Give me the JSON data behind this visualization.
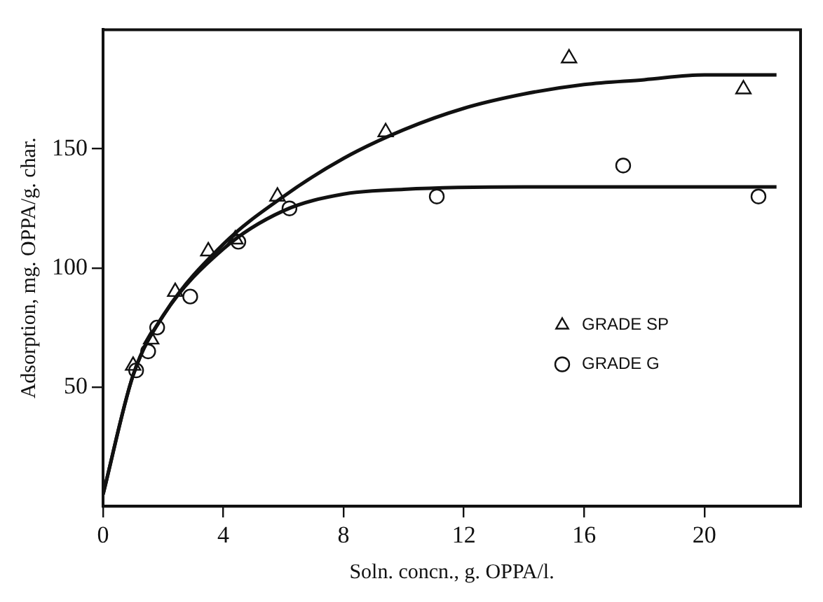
{
  "chart_data": {
    "type": "scatter",
    "xlabel": "Soln. concn., g. OPPA/l.",
    "ylabel": "Adsorption, mg. OPPA/g. char.",
    "xlim": [
      0,
      23.2
    ],
    "ylim": [
      0,
      200
    ],
    "xticks": [
      0,
      4,
      8,
      12,
      16,
      20
    ],
    "yticks": [
      50,
      100,
      150
    ],
    "grid": false,
    "legend": "right",
    "series": [
      {
        "name": "GRADE SP",
        "type": "scatter",
        "marker": "triangle",
        "color": "#111111",
        "x": [
          1.0,
          1.6,
          2.4,
          3.5,
          4.4,
          5.8,
          9.4,
          15.5,
          21.3
        ],
        "values": [
          59,
          70,
          90,
          107,
          112,
          130,
          157,
          188,
          175
        ]
      },
      {
        "name": "GRADE G",
        "type": "scatter",
        "marker": "circle",
        "color": "#111111",
        "x": [
          1.1,
          1.5,
          1.8,
          2.9,
          4.5,
          6.2,
          11.1,
          17.3,
          21.8
        ],
        "values": [
          57,
          65,
          75,
          88,
          111,
          125,
          130,
          143,
          130
        ]
      },
      {
        "type": "line",
        "marker": "none",
        "color": "#111111",
        "x": [
          0,
          1,
          2,
          4,
          6,
          8,
          10,
          12,
          14,
          16,
          18,
          20,
          22.4
        ],
        "values": [
          5,
          55,
          80,
          110,
          130,
          146,
          158,
          167,
          173,
          177,
          179,
          181,
          181
        ]
      },
      {
        "type": "line",
        "marker": "none",
        "color": "#111111",
        "x": [
          0,
          1,
          2,
          4,
          6,
          8,
          10,
          14,
          18,
          22.4
        ],
        "values": [
          5,
          55,
          80,
          108,
          124,
          131,
          133,
          134,
          134,
          134
        ]
      }
    ]
  }
}
